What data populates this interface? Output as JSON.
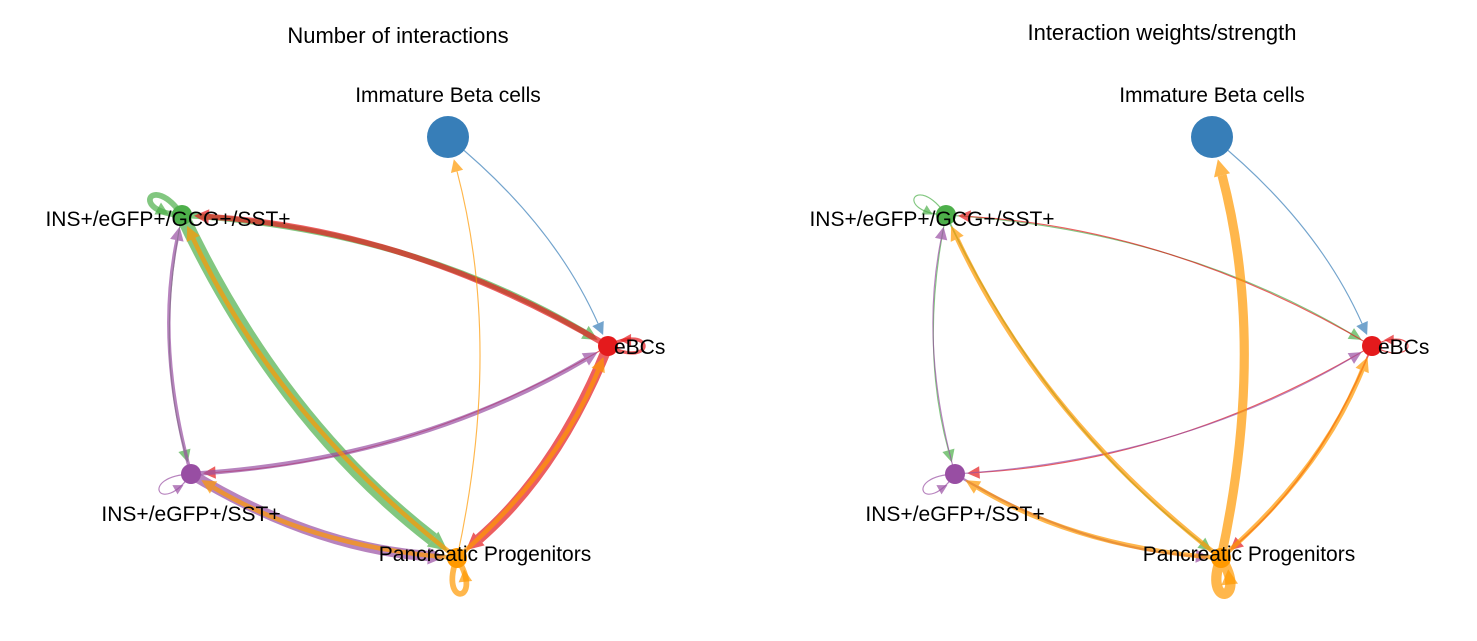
{
  "colors": {
    "Immature Beta cells": "#377EB8",
    "INS+/eGFP+/GCG+/SST+": "#4DAF4A",
    "eBCs": "#E41A1C",
    "INS+/eGFP+/SST+": "#984EA3",
    "Pancreatic Progenitors": "#FF9900"
  },
  "panels": [
    {
      "title": "Number of interactions",
      "nodes": [
        {
          "id": "Immature Beta cells",
          "label": "Immature Beta cells",
          "size": "large"
        },
        {
          "id": "INS+/eGFP+/GCG+/SST+",
          "label": "INS+/eGFP+/GCG+/SST+",
          "size": "small"
        },
        {
          "id": "eBCs",
          "label": "eBCs",
          "size": "small"
        },
        {
          "id": "INS+/eGFP+/SST+",
          "label": "INS+/eGFP+/SST+",
          "size": "small"
        },
        {
          "id": "Pancreatic Progenitors",
          "label": "Pancreatic Progenitors",
          "size": "small"
        }
      ],
      "edges": [
        {
          "from": "Immature Beta cells",
          "to": "eBCs",
          "weight": 1
        },
        {
          "from": "INS+/eGFP+/GCG+/SST+",
          "to": "INS+/eGFP+/GCG+/SST+",
          "weight": 5
        },
        {
          "from": "INS+/eGFP+/GCG+/SST+",
          "to": "eBCs",
          "weight": 5
        },
        {
          "from": "INS+/eGFP+/GCG+/SST+",
          "to": "INS+/eGFP+/SST+",
          "weight": 1
        },
        {
          "from": "INS+/eGFP+/GCG+/SST+",
          "to": "Pancreatic Progenitors",
          "weight": 12
        },
        {
          "from": "eBCs",
          "to": "eBCs",
          "weight": 3
        },
        {
          "from": "eBCs",
          "to": "INS+/eGFP+/GCG+/SST+",
          "weight": 5
        },
        {
          "from": "eBCs",
          "to": "INS+/eGFP+/SST+",
          "weight": 1
        },
        {
          "from": "eBCs",
          "to": "Pancreatic Progenitors",
          "weight": 9
        },
        {
          "from": "INS+/eGFP+/SST+",
          "to": "INS+/eGFP+/SST+",
          "weight": 1
        },
        {
          "from": "INS+/eGFP+/SST+",
          "to": "INS+/eGFP+/GCG+/SST+",
          "weight": 3
        },
        {
          "from": "INS+/eGFP+/SST+",
          "to": "eBCs",
          "weight": 4
        },
        {
          "from": "INS+/eGFP+/SST+",
          "to": "Pancreatic Progenitors",
          "weight": 9
        },
        {
          "from": "Pancreatic Progenitors",
          "to": "Pancreatic Progenitors",
          "weight": 5
        },
        {
          "from": "Pancreatic Progenitors",
          "to": "Immature Beta cells",
          "weight": 1
        },
        {
          "from": "Pancreatic Progenitors",
          "to": "INS+/eGFP+/GCG+/SST+",
          "weight": 4
        },
        {
          "from": "Pancreatic Progenitors",
          "to": "eBCs",
          "weight": 4
        },
        {
          "from": "Pancreatic Progenitors",
          "to": "INS+/eGFP+/SST+",
          "weight": 4
        }
      ]
    },
    {
      "title": "Interaction weights/strength",
      "nodes": [
        {
          "id": "Immature Beta cells",
          "label": "Immature Beta cells",
          "size": "large"
        },
        {
          "id": "INS+/eGFP+/GCG+/SST+",
          "label": "INS+/eGFP+/GCG+/SST+",
          "size": "small"
        },
        {
          "id": "eBCs",
          "label": "eBCs",
          "size": "small"
        },
        {
          "id": "INS+/eGFP+/SST+",
          "label": "INS+/eGFP+/SST+",
          "size": "small"
        },
        {
          "id": "Pancreatic Progenitors",
          "label": "Pancreatic Progenitors",
          "size": "small"
        }
      ],
      "edges": [
        {
          "from": "Immature Beta cells",
          "to": "eBCs",
          "weight": 1
        },
        {
          "from": "INS+/eGFP+/GCG+/SST+",
          "to": "INS+/eGFP+/GCG+/SST+",
          "weight": 1
        },
        {
          "from": "INS+/eGFP+/GCG+/SST+",
          "to": "eBCs",
          "weight": 1
        },
        {
          "from": "INS+/eGFP+/GCG+/SST+",
          "to": "INS+/eGFP+/SST+",
          "weight": 1
        },
        {
          "from": "INS+/eGFP+/GCG+/SST+",
          "to": "Pancreatic Progenitors",
          "weight": 1.5
        },
        {
          "from": "eBCs",
          "to": "eBCs",
          "weight": 1
        },
        {
          "from": "eBCs",
          "to": "INS+/eGFP+/GCG+/SST+",
          "weight": 1
        },
        {
          "from": "eBCs",
          "to": "INS+/eGFP+/SST+",
          "weight": 1
        },
        {
          "from": "eBCs",
          "to": "Pancreatic Progenitors",
          "weight": 1.5
        },
        {
          "from": "INS+/eGFP+/SST+",
          "to": "INS+/eGFP+/SST+",
          "weight": 1
        },
        {
          "from": "INS+/eGFP+/SST+",
          "to": "INS+/eGFP+/GCG+/SST+",
          "weight": 1
        },
        {
          "from": "INS+/eGFP+/SST+",
          "to": "eBCs",
          "weight": 1
        },
        {
          "from": "INS+/eGFP+/SST+",
          "to": "Pancreatic Progenitors",
          "weight": 2
        },
        {
          "from": "Pancreatic Progenitors",
          "to": "Pancreatic Progenitors",
          "weight": 9
        },
        {
          "from": "Pancreatic Progenitors",
          "to": "Immature Beta cells",
          "weight": 8
        },
        {
          "from": "Pancreatic Progenitors",
          "to": "INS+/eGFP+/GCG+/SST+",
          "weight": 4
        },
        {
          "from": "Pancreatic Progenitors",
          "to": "eBCs",
          "weight": 4
        },
        {
          "from": "Pancreatic Progenitors",
          "to": "INS+/eGFP+/SST+",
          "weight": 4
        }
      ]
    }
  ]
}
